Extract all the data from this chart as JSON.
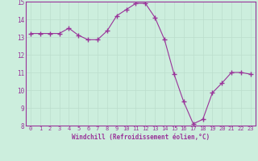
{
  "x": [
    0,
    1,
    2,
    3,
    4,
    5,
    6,
    7,
    8,
    9,
    10,
    11,
    12,
    13,
    14,
    15,
    16,
    17,
    18,
    19,
    20,
    21,
    22,
    23
  ],
  "y": [
    13.2,
    13.2,
    13.2,
    13.2,
    13.5,
    13.1,
    12.85,
    12.85,
    13.35,
    14.2,
    14.55,
    14.9,
    14.9,
    14.1,
    12.85,
    10.9,
    9.35,
    8.1,
    8.35,
    9.85,
    10.4,
    11.0,
    11.0,
    10.9
  ],
  "line_color": "#993399",
  "marker": "+",
  "marker_size": 4,
  "bg_color": "#cceedd",
  "grid_color": "#bbddcc",
  "xlabel": "Windchill (Refroidissement éolien,°C)",
  "ylim": [
    8,
    15
  ],
  "xlim": [
    -0.5,
    23.5
  ],
  "yticks": [
    8,
    9,
    10,
    11,
    12,
    13,
    14,
    15
  ],
  "xticks": [
    0,
    1,
    2,
    3,
    4,
    5,
    6,
    7,
    8,
    9,
    10,
    11,
    12,
    13,
    14,
    15,
    16,
    17,
    18,
    19,
    20,
    21,
    22,
    23
  ],
  "tick_color": "#993399",
  "label_color": "#993399",
  "spine_color": "#993399"
}
